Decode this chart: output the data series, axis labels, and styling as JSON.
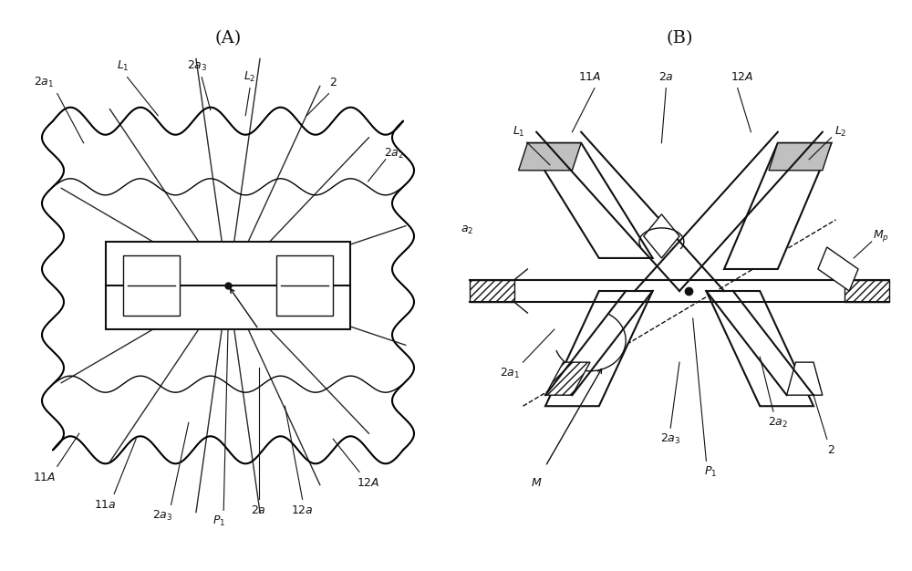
{
  "bg_color": "#ffffff",
  "line_color": "#111111",
  "figsize": [
    10.0,
    6.26
  ],
  "dpi": 100
}
